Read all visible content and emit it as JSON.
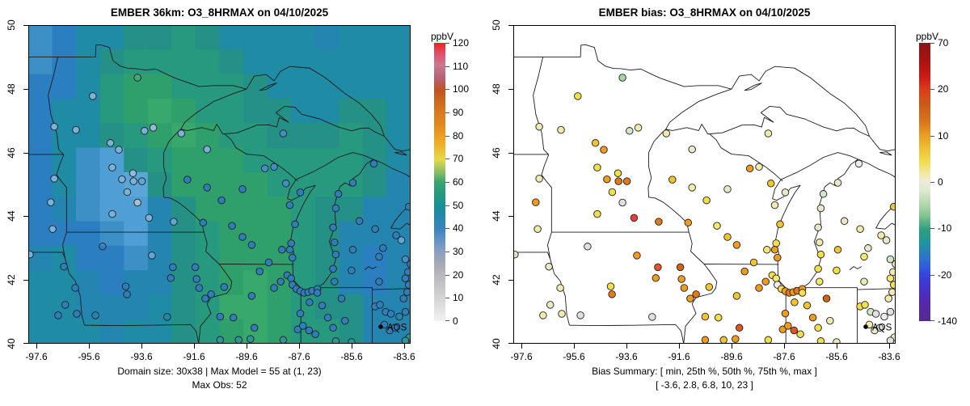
{
  "left_panel": {
    "title": "EMBER 36km: O3_8HRMAX on 04/10/2025",
    "caption_line1": "Domain size: 30x38 | Max Model = 55 at (1, 23)",
    "caption_line2": "Max Obs: 52",
    "legend_label": "AQS",
    "colorbar": {
      "unit": "ppbV",
      "ticks": [
        "120",
        "110",
        "100",
        "90",
        "80",
        "70",
        "60",
        "50",
        "40",
        "30",
        "20",
        "10",
        "0"
      ],
      "stops_bottom_to_top": [
        "#f2f2f2 0%",
        "#d5d5d5 8%",
        "#b7b7bb 17%",
        "#a3a8b5 21%",
        "#8ba0c0 25%",
        "#6593c5 29%",
        "#3a83c0 33%",
        "#2088ab 38%",
        "#1b9090 42%",
        "#27997f 46%",
        "#3aa46c 50%",
        "#8fc167 54%",
        "#e8d84a 58%",
        "#edba30 62%",
        "#ef9a20 67%",
        "#e2871e 71%",
        "#d97b1e 75%",
        "#c1531f 83%",
        "#b85f70 87%",
        "#c87a8e 92%",
        "#e0506a 96%",
        "#ee2222 100%"
      ]
    }
  },
  "right_panel": {
    "title": "EMBER bias: O3_8HRMAX on 04/10/2025",
    "caption_line1": "Bias Summary: [ min, 25th %, 50th %, 75th %, max ]",
    "caption_line2": "[ -3.6,  2.8,  6.8,  10,  23 ]",
    "legend_label": "AQS",
    "colorbar": {
      "unit": "ppbV",
      "ticks": [
        "70",
        "20",
        "10",
        "0",
        "-10",
        "-20",
        "-140"
      ],
      "stops_bottom_to_top": [
        "#542a8c 0%",
        "#5527ae 7%",
        "#4433cc 12%",
        "#3347e0 17%",
        "#2b6fd0 22%",
        "#1f95a0 28%",
        "#2f9f7c 33%",
        "#84c492 38%",
        "#b2d8ac 42%",
        "#dcead0 47%",
        "#efeadd 50%",
        "#efe9a4 53%",
        "#f0dc55 57%",
        "#eec035 62%",
        "#e89b22 67%",
        "#d9731a 72%",
        "#cc5a16 78%",
        "#dd3d1b 83%",
        "#cc1a15 88%",
        "#a81111 94%",
        "#8b1515 100%"
      ]
    }
  },
  "axes": {
    "x_ticks": [
      "-97.6",
      "-95.6",
      "-93.6",
      "-91.6",
      "-89.6",
      "-87.6",
      "-85.6",
      "-83.6"
    ],
    "y_ticks": [
      "50",
      "48",
      "46",
      "44",
      "42",
      "40"
    ]
  },
  "chart_data": {
    "type": "map-scatter",
    "lon_range": [
      -97.907,
      -83.35
    ],
    "lat_range": [
      40,
      50
    ],
    "max_model": 55,
    "max_model_at": "(1, 23)",
    "max_obs": 52,
    "bias_summary": {
      "min": -3.6,
      "p25": 2.8,
      "p50": 6.8,
      "p75": 10,
      "max": 23
    },
    "obs_palette": {
      "LB": "#79b2db",
      "L2": "#8fbcdc",
      "L3": "#5fa5d5",
      "MB": "#2e7ebc",
      "B3": "#4090c8",
      "GB": "#a6bed0",
      "TE": "#2a9898",
      "GN": "#45a47a",
      "OP": "none"
    },
    "bias_palette": {
      "Y": "#f3df4a",
      "Y2": "#f5e96d",
      "YO": "#f0c52f",
      "PY": "#efeaad",
      "P2": "#e9e9c8",
      "OR": "#ee9b20",
      "DO": "#e2791a",
      "OB": "#cf6414",
      "RO": "#e05522",
      "RD": "#ee3a3a",
      "GY": "#e0e0e0",
      "G2": "#ededed",
      "PG": "#d4e6c8",
      "LG": "#a8d5a4"
    },
    "raster": {
      "cols": 16,
      "rows": 13,
      "palette": {
        "T": "#1f8ba4",
        "TG": "#259186",
        "G1": "#27997f",
        "G2": "#2fa06b",
        "G3": "#38a86d",
        "BL": "#2b7fc0",
        "B4": "#2486b0",
        "LB": "#4f9fd4",
        "L2": "#3d90c6",
        "L3": "#5aa6d8"
      },
      "cells": [
        [
          "L2",
          "BL",
          "T",
          "T",
          "TG",
          "TG",
          "G1",
          "TG",
          "T",
          "T",
          "T",
          "T",
          "B4",
          "T",
          "T",
          "T"
        ],
        [
          "L2",
          "BL",
          "T",
          "TG",
          "G1",
          "G1",
          "G1",
          "G1",
          "TG",
          "T",
          "T",
          "T",
          "T",
          "T",
          "T",
          "T"
        ],
        [
          "BL",
          "BL",
          "T",
          "G1",
          "G2",
          "G2",
          "G1",
          "G1",
          "G1",
          "TG",
          "T",
          "T",
          "T",
          "T",
          "T",
          "T"
        ],
        [
          "BL",
          "T",
          "T",
          "G1",
          "G2",
          "G3",
          "G2",
          "G1",
          "G1",
          "TG",
          "TG",
          "T",
          "T",
          "TG",
          "TG",
          "T"
        ],
        [
          "BL",
          "T",
          "T",
          "TG",
          "G1",
          "G2",
          "G3",
          "G2",
          "G1",
          "G1",
          "TG",
          "TG",
          "TG",
          "G1",
          "TG",
          "T"
        ],
        [
          "BL",
          "T",
          "L2",
          "LB",
          "TG",
          "G1",
          "G2",
          "G2",
          "G2",
          "G1",
          "G1",
          "G1",
          "G1",
          "G1",
          "TG",
          "T"
        ],
        [
          "BL",
          "T",
          "L2",
          "LB",
          "L3",
          "TG",
          "G2",
          "G2",
          "G2",
          "G2",
          "G1",
          "G1",
          "G1",
          "G1",
          "TG",
          "B4"
        ],
        [
          "BL",
          "B4",
          "L2",
          "LB",
          "LB",
          "B4",
          "TG",
          "G2",
          "G2",
          "G2",
          "G2",
          "G1",
          "TG",
          "TG",
          "B4",
          "B4"
        ],
        [
          "BL",
          "BL",
          "BL",
          "L2",
          "LB",
          "B4",
          "TG",
          "G1",
          "G2",
          "G2",
          "G2",
          "G1",
          "TG",
          "B4",
          "B4",
          "B4"
        ],
        [
          "B4",
          "T",
          "BL",
          "BL",
          "L2",
          "B4",
          "TG",
          "G1",
          "G2",
          "G2",
          "G2",
          "G1",
          "TG",
          "B4",
          "BL",
          "B4"
        ],
        [
          "T",
          "T",
          "B4",
          "BL",
          "B4",
          "B4",
          "TG",
          "G1",
          "G2",
          "G3",
          "G2",
          "G1",
          "TG",
          "B4",
          "BL",
          "B4"
        ],
        [
          "T",
          "T",
          "B4",
          "B4",
          "B4",
          "T",
          "TG",
          "G1",
          "G3",
          "G3",
          "G2",
          "G1",
          "TG",
          "TG",
          "B4",
          "B4"
        ],
        [
          "T",
          "T",
          "T",
          "B4",
          "T",
          "T",
          "TG",
          "G1",
          "G2",
          "G3",
          "G2",
          "G1",
          "G1",
          "TG",
          "B4",
          "B4"
        ]
      ]
    },
    "sites": [
      [
        -93.75,
        48.35,
        "GN",
        "LG"
      ],
      [
        -95.45,
        47.77,
        "LB",
        "Y"
      ],
      [
        -96.92,
        46.81,
        "LB",
        "PY"
      ],
      [
        -96.09,
        46.71,
        "LB",
        "PY"
      ],
      [
        -94.78,
        46.3,
        "LB",
        "YO"
      ],
      [
        -94.46,
        46.09,
        "LB",
        "OR"
      ],
      [
        -93.48,
        46.68,
        "LB",
        "PG"
      ],
      [
        -93.15,
        46.78,
        "L2",
        "PY"
      ],
      [
        -92.08,
        46.6,
        "LB",
        "PY"
      ],
      [
        -91.1,
        46.1,
        "LB",
        "P2"
      ],
      [
        -88.2,
        46.6,
        "B3",
        "PY"
      ],
      [
        -88.9,
        45.5,
        "B3",
        "OR"
      ],
      [
        -88.1,
        45.03,
        "B3",
        "YO"
      ],
      [
        -94.71,
        45.53,
        "LB",
        "Y"
      ],
      [
        -94.34,
        45.16,
        "LB",
        "OR"
      ],
      [
        -93.92,
        45.35,
        "L2",
        "Y"
      ],
      [
        -93.9,
        45.1,
        "LB",
        "DO"
      ],
      [
        -93.58,
        45.1,
        "L3",
        "DO"
      ],
      [
        -94.14,
        44.76,
        "LB",
        "Y"
      ],
      [
        -93.75,
        44.43,
        "GB",
        "GY"
      ],
      [
        -94.71,
        44.07,
        "LB",
        "Y"
      ],
      [
        -93.31,
        43.95,
        "LB",
        "RD"
      ],
      [
        -92.37,
        43.83,
        "L3",
        "DO"
      ],
      [
        -96.92,
        45.18,
        "LB",
        "PY"
      ],
      [
        -97.05,
        44.44,
        "LB",
        "OR"
      ],
      [
        -96.98,
        43.6,
        "LB",
        "PY"
      ],
      [
        -97.85,
        42.8,
        "LB",
        "PG"
      ],
      [
        -96.55,
        42.42,
        "MB",
        "P2"
      ],
      [
        -95.08,
        43.05,
        "OP",
        "GY"
      ],
      [
        -93.2,
        42.77,
        "L3",
        "OR"
      ],
      [
        -92.4,
        42.4,
        "MB",
        "RO"
      ],
      [
        -92.48,
        42.06,
        "MB",
        "OR"
      ],
      [
        -94.2,
        41.8,
        "MB",
        "Y"
      ],
      [
        -94.15,
        41.55,
        "MB",
        "DO"
      ],
      [
        -96.12,
        41.75,
        "MB",
        "PY"
      ],
      [
        -96.5,
        41.22,
        "MB",
        "P2"
      ],
      [
        -96.06,
        40.94,
        "MB",
        "PY"
      ],
      [
        -95.35,
        40.89,
        "OP",
        "GY"
      ],
      [
        -96.77,
        40.89,
        "MB",
        "PY"
      ],
      [
        -92.62,
        40.84,
        "OP",
        "GY"
      ],
      [
        -91.17,
        41.42,
        "MB",
        "OR"
      ],
      [
        -90.95,
        41.55,
        "MB",
        "DO"
      ],
      [
        -91.55,
        42.4,
        "MB",
        "OB"
      ],
      [
        -91.5,
        42.03,
        "MB",
        "OR"
      ],
      [
        -91.4,
        41.75,
        "MB",
        "OR"
      ],
      [
        -91.25,
        43.8,
        "MB",
        "OR"
      ],
      [
        -91.85,
        45.15,
        "MB",
        "YO"
      ],
      [
        -91.1,
        44.9,
        "MB",
        "PY"
      ],
      [
        -90.55,
        44.5,
        "MB",
        "Y"
      ],
      [
        -89.75,
        44.85,
        "MB",
        "P2"
      ],
      [
        -88.55,
        45.55,
        "B3",
        "PY"
      ],
      [
        -89.4,
        43.1,
        "MB",
        "OR"
      ],
      [
        -89.75,
        43.35,
        "MB",
        "YO"
      ],
      [
        -90.15,
        43.7,
        "MB",
        "Y2"
      ],
      [
        -87.95,
        44.35,
        "MB",
        "PY"
      ],
      [
        -87.55,
        44.75,
        "MB",
        "P2"
      ],
      [
        -87.75,
        43.75,
        "MB",
        "YO"
      ],
      [
        -87.9,
        43.15,
        "MB",
        "Y"
      ],
      [
        -87.95,
        42.95,
        "MB",
        "OR"
      ],
      [
        -88.25,
        42.95,
        "MB",
        "Y2"
      ],
      [
        -87.85,
        42.7,
        "MB",
        "OR"
      ],
      [
        -88.75,
        42.55,
        "MB",
        "YO"
      ],
      [
        -88.3,
        41.95,
        "MB",
        "OR"
      ],
      [
        -88.05,
        42.15,
        "MB",
        "Y"
      ],
      [
        -87.9,
        42.05,
        "MB",
        "Y2"
      ],
      [
        -87.85,
        41.85,
        "MB",
        "G2"
      ],
      [
        -87.7,
        41.72,
        "MB",
        "Y"
      ],
      [
        -87.55,
        41.65,
        "MB",
        "OR"
      ],
      [
        -87.4,
        41.6,
        "MB",
        "DO"
      ],
      [
        -87.25,
        41.62,
        "MB",
        "OR"
      ],
      [
        -87.1,
        41.66,
        "MB",
        "DO"
      ],
      [
        -86.9,
        41.72,
        "MB",
        "OR"
      ],
      [
        -88.55,
        41.75,
        "MB",
        "OR"
      ],
      [
        -89.1,
        42.27,
        "MB",
        "OR"
      ],
      [
        -90.45,
        41.78,
        "MB",
        "YO"
      ],
      [
        -89.4,
        41.5,
        "MB",
        "YO"
      ],
      [
        -90.6,
        40.85,
        "MB",
        "YO"
      ],
      [
        -90.1,
        40.82,
        "MB",
        "Y"
      ],
      [
        -89.3,
        40.5,
        "MB",
        "RO"
      ],
      [
        -89.45,
        40.15,
        "TE",
        "OR"
      ],
      [
        -89.9,
        40.12,
        "TE",
        "YO"
      ],
      [
        -90.6,
        40.12,
        "TE",
        "OR"
      ],
      [
        -88.2,
        40.12,
        "TE",
        "Y"
      ],
      [
        -87.65,
        40.45,
        "MB",
        "OR"
      ],
      [
        -87.55,
        40.95,
        "MB",
        "OR"
      ],
      [
        -87.2,
        41.3,
        "MB",
        "YO"
      ],
      [
        -87.45,
        40.56,
        "MB",
        "OR"
      ],
      [
        -87.22,
        40.42,
        "MB",
        "RO"
      ],
      [
        -86.98,
        40.3,
        "MB",
        "Y"
      ],
      [
        -86.9,
        41.6,
        "MB",
        "Y"
      ],
      [
        -86.72,
        41.2,
        "MB",
        "YO"
      ],
      [
        -86.5,
        40.82,
        "MB",
        "OR"
      ],
      [
        -86.3,
        40.5,
        "MB",
        "Y"
      ],
      [
        -85.85,
        40.72,
        "MB",
        "PY"
      ],
      [
        -85.98,
        41.42,
        "MB",
        "OB"
      ],
      [
        -86.2,
        40.08,
        "TE",
        "Y"
      ],
      [
        -85.6,
        40.05,
        "TE",
        "PY"
      ],
      [
        -86.25,
        41.95,
        "MB",
        "Y2"
      ],
      [
        -86.3,
        42.35,
        "MB",
        "Y"
      ],
      [
        -86.2,
        42.8,
        "MB",
        "Y"
      ],
      [
        -86.25,
        43.18,
        "MB",
        "PY"
      ],
      [
        -86.3,
        43.65,
        "MB",
        "P2"
      ],
      [
        -86.2,
        44.25,
        "MB",
        "P2"
      ],
      [
        -86.1,
        44.7,
        "MB",
        "PG"
      ],
      [
        -85.55,
        45.05,
        "MB",
        "P2"
      ],
      [
        -84.75,
        45.65,
        "MB",
        "G2"
      ],
      [
        -85.6,
        42.3,
        "MB",
        "Y"
      ],
      [
        -85.55,
        42.95,
        "MB",
        "YO"
      ],
      [
        -85.3,
        43.85,
        "MB",
        "P2"
      ],
      [
        -84.7,
        43.6,
        "MB",
        "PY"
      ],
      [
        -84.4,
        43.0,
        "MB",
        "P2"
      ],
      [
        -84.55,
        42.73,
        "MB",
        "Y2"
      ],
      [
        -83.9,
        43.4,
        "MB",
        "PY"
      ],
      [
        -83.7,
        43.25,
        "L3",
        "P2"
      ],
      [
        -83.55,
        42.65,
        "B3",
        "PG"
      ],
      [
        -83.35,
        42.5,
        "MB",
        "PY"
      ],
      [
        -83.45,
        42.25,
        "MB",
        "PY"
      ],
      [
        -83.55,
        42.05,
        "MB",
        "Y2"
      ],
      [
        -84.55,
        41.95,
        "MB",
        "PY"
      ],
      [
        -84.7,
        41.17,
        "MB",
        "Y"
      ],
      [
        -84.52,
        41.22,
        "MB",
        "Y"
      ],
      [
        -84.3,
        41.0,
        "MB",
        "PG"
      ],
      [
        -84.1,
        40.94,
        "MB",
        "GY"
      ],
      [
        -84.35,
        40.6,
        "MB",
        "PY"
      ],
      [
        -84.15,
        40.42,
        "MB",
        "P2"
      ],
      [
        -83.95,
        40.5,
        "MB",
        "GY"
      ],
      [
        -83.78,
        40.85,
        "OP",
        "G2"
      ],
      [
        -83.55,
        41.0,
        "MB",
        "GY"
      ],
      [
        -83.62,
        41.42,
        "MB",
        "PY"
      ],
      [
        -83.48,
        41.62,
        "MB",
        "PY"
      ],
      [
        -83.42,
        41.85,
        "MB",
        "Y"
      ],
      [
        -83.4,
        40.2,
        "TE",
        "P2"
      ],
      [
        -83.55,
        40.1,
        "TE",
        "GY"
      ],
      [
        -83.42,
        44.3,
        "MB",
        "YO"
      ]
    ]
  }
}
